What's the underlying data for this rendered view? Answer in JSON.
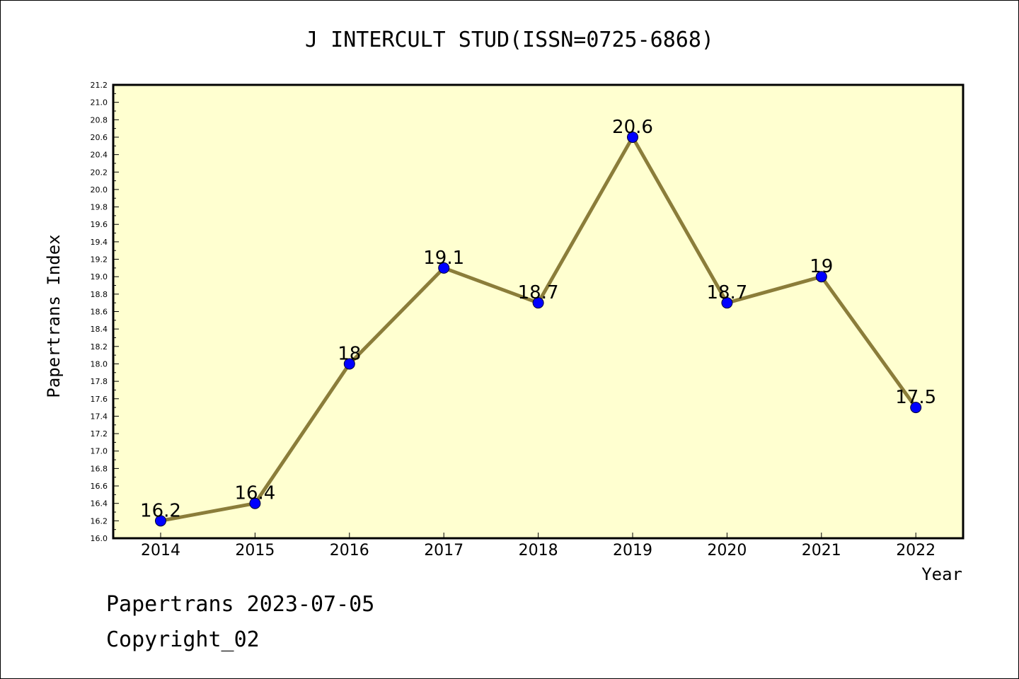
{
  "chart_data": {
    "type": "line",
    "title": "J INTERCULT STUD(ISSN=0725-6868)",
    "xlabel": "Year",
    "ylabel": "Papertrans Index",
    "categories": [
      "2014",
      "2015",
      "2016",
      "2017",
      "2018",
      "2019",
      "2020",
      "2021",
      "2022"
    ],
    "series": [
      {
        "values": [
          16.2,
          16.4,
          18,
          19.1,
          18.7,
          20.6,
          18.7,
          19,
          17.5
        ],
        "labels": [
          "16.2",
          "16.4",
          "18",
          "19.1",
          "18.7",
          "20.6",
          "18.7",
          "19",
          "17.5"
        ]
      }
    ],
    "ylim": [
      16.0,
      21.2
    ],
    "yticks": [
      "16.0",
      "16.2",
      "16.4",
      "16.6",
      "16.8",
      "17.0",
      "17.2",
      "17.4",
      "17.6",
      "17.8",
      "18.0",
      "18.2",
      "18.4",
      "18.6",
      "18.8",
      "19.0",
      "19.2",
      "19.4",
      "19.6",
      "19.8",
      "20.0",
      "20.2",
      "20.4",
      "20.6",
      "20.8",
      "21.0",
      "21.2"
    ],
    "grid": false,
    "colors": {
      "plot_background": "#ffffd0",
      "line": "#8b7d3a",
      "marker": "#0000ff"
    }
  },
  "footer": {
    "line1": "Papertrans 2023-07-05",
    "line2": "Copyright_02"
  }
}
